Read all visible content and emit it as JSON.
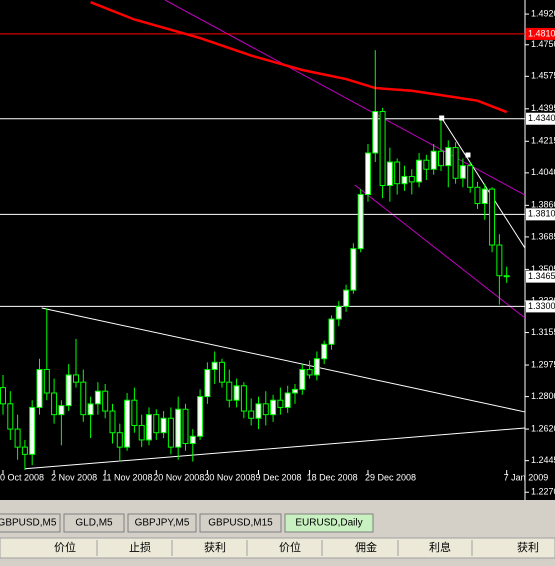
{
  "chart_data": {
    "type": "candlestick",
    "open": [
      1.285,
      1.276,
      1.262,
      1.252,
      1.248,
      1.274,
      1.295,
      1.282,
      1.27,
      1.275,
      1.292,
      1.288,
      1.27,
      1.276,
      1.283,
      1.272,
      1.26,
      1.252,
      1.278,
      1.264,
      1.256,
      1.27,
      1.26,
      1.268,
      1.252,
      1.273,
      1.254,
      1.258,
      1.28,
      1.295,
      1.299,
      1.288,
      1.278,
      1.286,
      1.272,
      1.268,
      1.276,
      1.27,
      1.278,
      1.274,
      1.282,
      1.284,
      1.295,
      1.292,
      1.301,
      1.309,
      1.323,
      1.33,
      1.339,
      1.362,
      1.392,
      1.415,
      1.438,
      1.397,
      1.41,
      1.398,
      1.402,
      1.399,
      1.411,
      1.406,
      1.416,
      1.408,
      1.418,
      1.401,
      1.408,
      1.396,
      1.387,
      1.395,
      1.364,
      1.347
    ],
    "high": [
      1.292,
      1.283,
      1.27,
      1.256,
      1.278,
      1.301,
      1.329,
      1.29,
      1.278,
      1.298,
      1.312,
      1.295,
      1.28,
      1.288,
      1.287,
      1.276,
      1.265,
      1.282,
      1.285,
      1.27,
      1.274,
      1.273,
      1.272,
      1.274,
      1.28,
      1.276,
      1.262,
      1.284,
      1.299,
      1.305,
      1.301,
      1.295,
      1.29,
      1.288,
      1.279,
      1.28,
      1.283,
      1.281,
      1.285,
      1.286,
      1.287,
      1.298,
      1.3,
      1.305,
      1.311,
      1.325,
      1.333,
      1.342,
      1.365,
      1.395,
      1.42,
      1.472,
      1.44,
      1.418,
      1.412,
      1.408,
      1.406,
      1.415,
      1.414,
      1.42,
      1.434,
      1.422,
      1.421,
      1.412,
      1.41,
      1.399,
      1.398,
      1.396,
      1.37,
      1.352
    ],
    "low": [
      1.27,
      1.256,
      1.245,
      1.239,
      1.242,
      1.27,
      1.278,
      1.265,
      1.253,
      1.272,
      1.285,
      1.266,
      1.257,
      1.27,
      1.268,
      1.254,
      1.244,
      1.25,
      1.26,
      1.252,
      1.253,
      1.256,
      1.257,
      1.248,
      1.245,
      1.25,
      1.244,
      1.256,
      1.276,
      1.287,
      1.285,
      1.274,
      1.274,
      1.268,
      1.264,
      1.262,
      1.264,
      1.266,
      1.27,
      1.271,
      1.276,
      1.281,
      1.29,
      1.289,
      1.298,
      1.306,
      1.319,
      1.327,
      1.337,
      1.36,
      1.388,
      1.41,
      1.39,
      1.388,
      1.392,
      1.394,
      1.392,
      1.396,
      1.4,
      1.403,
      1.405,
      1.396,
      1.398,
      1.396,
      1.393,
      1.384,
      1.378,
      1.36,
      1.331,
      1.343
    ],
    "close": [
      1.276,
      1.262,
      1.252,
      1.248,
      1.274,
      1.295,
      1.282,
      1.27,
      1.275,
      1.292,
      1.288,
      1.27,
      1.276,
      1.283,
      1.272,
      1.26,
      1.252,
      1.278,
      1.264,
      1.256,
      1.27,
      1.26,
      1.268,
      1.252,
      1.273,
      1.254,
      1.258,
      1.28,
      1.295,
      1.299,
      1.288,
      1.278,
      1.286,
      1.272,
      1.268,
      1.276,
      1.27,
      1.278,
      1.274,
      1.282,
      1.284,
      1.295,
      1.292,
      1.301,
      1.309,
      1.323,
      1.33,
      1.339,
      1.362,
      1.392,
      1.415,
      1.438,
      1.397,
      1.41,
      1.398,
      1.402,
      1.399,
      1.411,
      1.406,
      1.416,
      1.408,
      1.418,
      1.401,
      1.408,
      1.396,
      1.387,
      1.395,
      1.364,
      1.347,
      1.3465
    ],
    "up_color": "#ffffff",
    "down_color": "#000000",
    "wick_color": "#00ff00",
    "xlim": [
      -0.41,
      71.51
    ],
    "ylim": [
      1.2227,
      1.4998
    ],
    "yticks": [
      {
        "value": 1.492,
        "label": "1.4920"
      },
      {
        "value": 1.475,
        "label": "1.4750"
      },
      {
        "value": 1.4575,
        "label": "1.4575"
      },
      {
        "value": 1.4395,
        "label": "1.4395"
      },
      {
        "value": 1.4215,
        "label": "1.4215"
      },
      {
        "value": 1.404,
        "label": "1.4040"
      },
      {
        "value": 1.386,
        "label": "1.3860"
      },
      {
        "value": 1.3685,
        "label": "1.3685"
      },
      {
        "value": 1.3505,
        "label": "1.3505"
      },
      {
        "value": 1.333,
        "label": "1.3330"
      },
      {
        "value": 1.3155,
        "label": "1.3155"
      },
      {
        "value": 1.2975,
        "label": "1.2975"
      },
      {
        "value": 1.28,
        "label": "1.2800"
      },
      {
        "value": 1.262,
        "label": "1.2620"
      },
      {
        "value": 1.2445,
        "label": "1.2445"
      },
      {
        "value": 1.227,
        "label": "1.2270"
      }
    ],
    "xticks": [
      {
        "value": 0,
        "label": "0 Oct 2008"
      },
      {
        "value": 7,
        "label": "2 Nov 2008"
      },
      {
        "value": 14,
        "label": "11 Nov 2008"
      },
      {
        "value": 21,
        "label": "20 Nov 2008"
      },
      {
        "value": 28,
        "label": "30 Nov 2008"
      },
      {
        "value": 35,
        "label": "9 Dec 2008"
      },
      {
        "value": 42,
        "label": "18 Dec 2008"
      },
      {
        "value": 50,
        "label": "29 Dec 2008"
      },
      {
        "value": 69,
        "label": "7 Jan 2009"
      }
    ],
    "moving_average": {
      "color": "#ff0000",
      "x": [
        12,
        18,
        27,
        34,
        41,
        47,
        51,
        56,
        60,
        65,
        69
      ],
      "values": [
        1.4986,
        1.489,
        1.4787,
        1.469,
        1.461,
        1.456,
        1.451,
        1.4495,
        1.4471,
        1.444,
        1.4377
      ]
    },
    "levels": [
      {
        "value": 1.481,
        "label": "1.4810",
        "color": "#ff0000"
      },
      {
        "value": 1.434,
        "label": "1.4340",
        "color": "#ffffff"
      },
      {
        "value": 1.381,
        "label": "1.3810",
        "color": "#ffffff"
      },
      {
        "value": 1.33,
        "label": "1.3300",
        "color": "#ffffff"
      }
    ],
    "bid": {
      "value": 1.3465,
      "label": "1.3465"
    },
    "trend_lines": [
      {
        "color": "#c000c0",
        "x": [
          22.2,
          71.5
        ],
        "y": [
          1.4998,
          1.3917
        ]
      },
      {
        "color": "#c000c0",
        "x": [
          48.2,
          71.5
        ],
        "y": [
          1.3973,
          1.3236
        ]
      },
      {
        "color": "#ffffff",
        "x": [
          5.3,
          71.5
        ],
        "y": [
          1.3291,
          1.2715
        ]
      },
      {
        "color": "#ffffff",
        "x": [
          3.0,
          71.5
        ],
        "y": [
          1.24,
          1.2626
        ]
      },
      {
        "color": "#ffffff",
        "x": [
          60.1,
          71.5
        ],
        "y": [
          1.4344,
          1.3624
        ]
      }
    ],
    "markers": {
      "color": "#ffffff",
      "x": [
        60.1,
        63.7
      ],
      "values": [
        1.4344,
        1.4139
      ]
    }
  },
  "tabs": [
    "GBPUSD,M5",
    "GLD,M5",
    "GBPJPY,M5",
    "GBPUSD,M15",
    "EURUSD,Daily"
  ],
  "columns": [
    "价位",
    "止损",
    "获利",
    "价位",
    "佣金",
    "利息",
    "获利"
  ]
}
